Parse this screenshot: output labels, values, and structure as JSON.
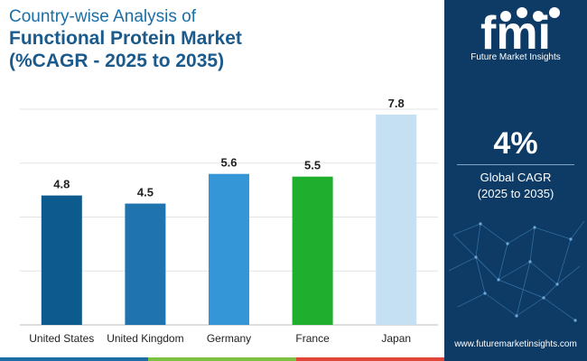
{
  "title": {
    "line1": "Country-wise Analysis of",
    "line2": "Functional Protein Market",
    "line3": "(%CAGR - 2025 to 2035)"
  },
  "chart_data": {
    "type": "bar",
    "categories": [
      "United States",
      "United Kingdom",
      "Germany",
      "France",
      "Japan"
    ],
    "values": [
      4.8,
      4.5,
      5.6,
      5.5,
      7.8
    ],
    "value_labels": [
      "4.8",
      "4.5",
      "5.6",
      "5.5",
      "7.8"
    ],
    "colors": [
      "#0d5a8f",
      "#1f74b0",
      "#3496d6",
      "#1fae2e",
      "#c6e0f3"
    ],
    "ylim": [
      0,
      8
    ],
    "ygrid": [
      0,
      2,
      4,
      6,
      8
    ],
    "xlabel": "",
    "ylabel": ""
  },
  "sidebar": {
    "logo_mark": "fmi",
    "logo_name": "Future Market Insights",
    "cagr_value": "4%",
    "cagr_label_line1": "Global CAGR",
    "cagr_label_line2": "(2025 to 2035)",
    "website": "www.futuremarketinsights.com"
  },
  "bottom_strip_colors": [
    "#1c6ea4",
    "#7dc142",
    "#e0453a"
  ],
  "colors": {
    "sidebar_bg": "#0d3b66",
    "title": "#1a5a8c"
  }
}
